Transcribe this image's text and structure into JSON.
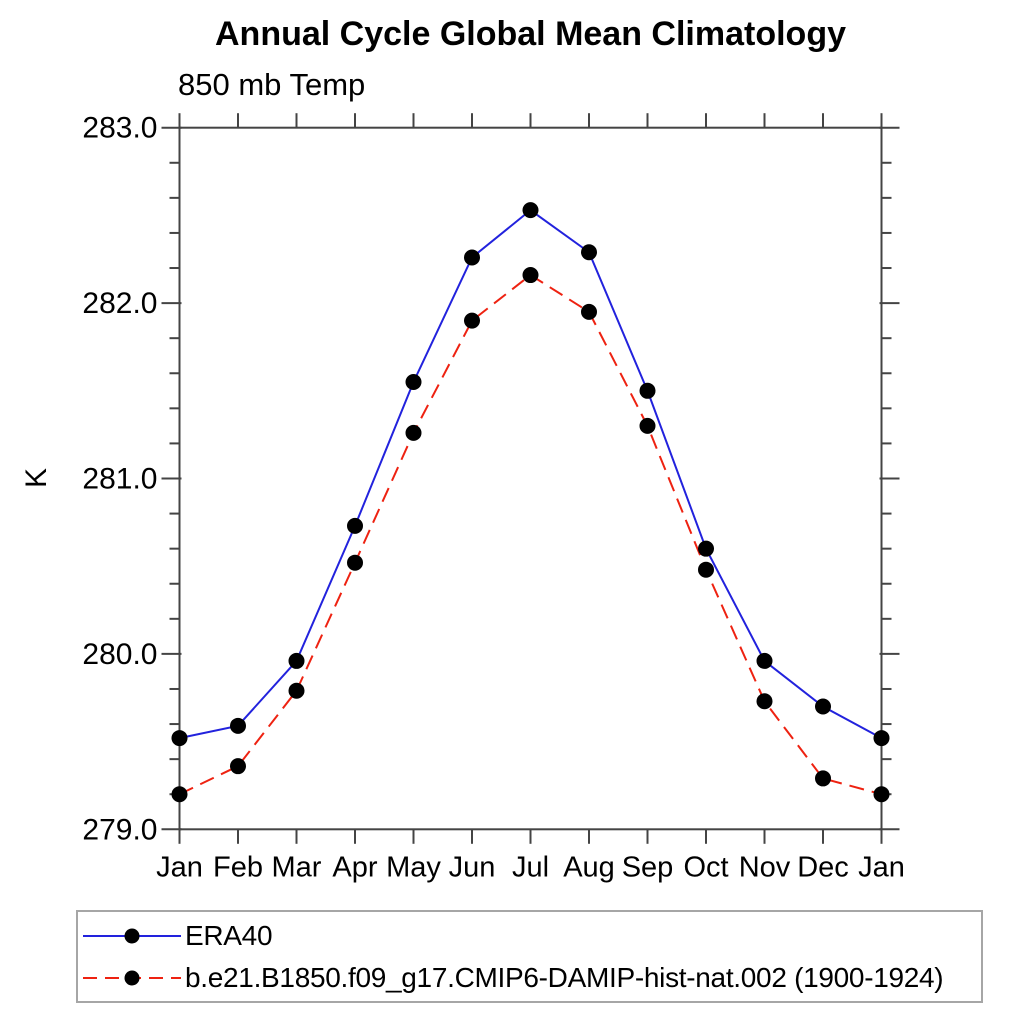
{
  "chart_data": {
    "type": "line",
    "title": "Annual Cycle Global Mean Climatology",
    "subtitle": "850 mb Temp",
    "ylabel": "K",
    "xlabel": "",
    "categories": [
      "Jan",
      "Feb",
      "Mar",
      "Apr",
      "May",
      "Jun",
      "Jul",
      "Aug",
      "Sep",
      "Oct",
      "Nov",
      "Dec",
      "Jan"
    ],
    "ylim": [
      279.0,
      283.0
    ],
    "ytick_values": [
      279.0,
      280.0,
      281.0,
      282.0,
      283.0
    ],
    "ytick_labels": [
      "279.0",
      "280.0",
      "281.0",
      "282.0",
      "283.0"
    ],
    "ytick_minor_step": 0.2,
    "grid": false,
    "legend_position": "bottom-left-box",
    "axis_color": "#444444",
    "marker": "filled-circle",
    "marker_color": "#000000",
    "series": [
      {
        "name": "ERA40",
        "color": "#2222dd",
        "line_style": "solid",
        "values": [
          279.52,
          279.59,
          279.96,
          280.73,
          281.55,
          282.26,
          282.53,
          282.29,
          281.5,
          280.6,
          279.96,
          279.7,
          279.52
        ]
      },
      {
        "name": "b.e21.B1850.f09_g17.CMIP6-DAMIP-hist-nat.002 (1900-1924)",
        "color": "#ee2211",
        "line_style": "dashed",
        "values": [
          279.2,
          279.36,
          279.79,
          280.52,
          281.26,
          281.9,
          282.16,
          281.95,
          281.3,
          280.48,
          279.73,
          279.29,
          279.2
        ]
      }
    ]
  }
}
